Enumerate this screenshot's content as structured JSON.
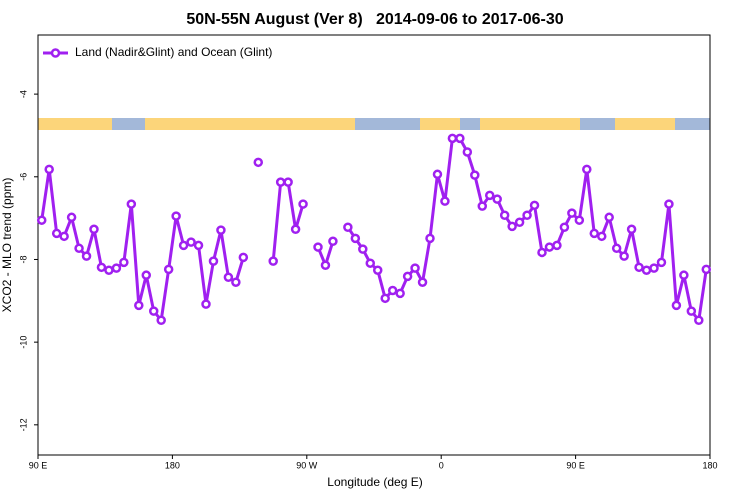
{
  "chart_data": {
    "type": "line",
    "title": "50N-55N August (Ver 8)   2014-09-06 to 2017-06-30",
    "x_label": "Longitude (deg E)",
    "y_label": "XCO2 - MLO trend (ppm)",
    "x": [
      92.5,
      97.5,
      102.5,
      107.5,
      112.5,
      117.5,
      122.5,
      127.5,
      132.5,
      137.5,
      142.5,
      147.5,
      152.5,
      157.5,
      162.5,
      167.5,
      172.5,
      177.5,
      182.5,
      187.5,
      192.5,
      197.5,
      202.5,
      207.5,
      212.5,
      217.5,
      222.5,
      227.5,
      232.5,
      237.5,
      242.5,
      247.5,
      252.5,
      257.5,
      262.5,
      267.5,
      272.5,
      277.5,
      282.5,
      287.5,
      292.5,
      297.5,
      302.5,
      307.5,
      312.5,
      317.5,
      322.5,
      327.5,
      332.5,
      337.5,
      342.5,
      347.5,
      352.5,
      357.5,
      362.5,
      367.5,
      372.5,
      377.5,
      382.5,
      387.5,
      392.5,
      397.5,
      402.5,
      407.5,
      412.5,
      417.5,
      422.5,
      427.5,
      432.5,
      437.5,
      442.5,
      447.5,
      452.5,
      457.5,
      462.5,
      467.5,
      472.5,
      477.5,
      482.5,
      487.5,
      492.5,
      497.5,
      502.5,
      507.5,
      512.5,
      517.5,
      522.5,
      527.5,
      532.5,
      537.5
    ],
    "series": [
      {
        "name": "Land (Nadir&Glint) and Ocean (Glint)",
        "color": "#a020f0",
        "values": [
          -7.05,
          -5.82,
          -7.37,
          -7.44,
          -6.98,
          -7.73,
          -7.92,
          -7.27,
          -8.19,
          -8.26,
          -8.21,
          -8.07,
          -6.66,
          -9.11,
          -8.38,
          -9.25,
          -9.47,
          -8.24,
          -6.95,
          -7.66,
          -7.58,
          -7.66,
          -9.08,
          -8.04,
          -7.29,
          -8.43,
          -8.55,
          -7.95,
          null,
          -5.65,
          null,
          -8.04,
          -6.13,
          -6.13,
          -7.27,
          -6.66,
          null,
          -7.7,
          -8.14,
          -7.56,
          null,
          -7.22,
          -7.49,
          -7.75,
          -8.09,
          -8.26,
          -8.94,
          -8.75,
          -8.82,
          -8.41,
          -8.21,
          -8.55,
          -7.49,
          -5.94,
          -6.59,
          -5.07,
          -5.07,
          -5.4,
          -5.96,
          -6.71,
          -6.45,
          -6.54,
          -6.93,
          -7.2,
          -7.1,
          -6.93,
          -6.69,
          -7.83,
          -7.7,
          -7.66,
          -7.22,
          -6.88,
          -7.05,
          -5.82,
          -7.37,
          -7.44,
          -6.98,
          -7.73,
          -7.92,
          -7.27,
          -8.19,
          -8.26,
          -8.21,
          -8.07,
          -6.66,
          -9.11,
          -8.38,
          -9.25,
          -9.47,
          -8.24
        ]
      }
    ],
    "xlim": [
      90,
      540
    ],
    "xticks": [
      {
        "value": 90,
        "label": "90 E"
      },
      180,
      {
        "value": 270,
        "label": "90 W"
      },
      {
        "value": 360,
        "label": "0"
      },
      {
        "value": 450,
        "label": "90 E"
      },
      {
        "value": 540,
        "label": "180"
      }
    ],
    "ylim": [
      -12.73,
      -2.57
    ],
    "yticks": [
      -4,
      -6,
      -8,
      -10,
      -12
    ],
    "legend": "top-left"
  }
}
